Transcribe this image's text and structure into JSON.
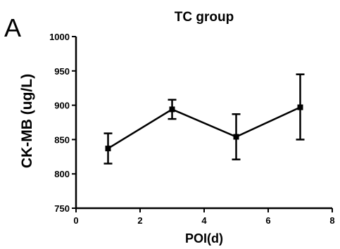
{
  "panel_label": "A",
  "chart_data": {
    "type": "line",
    "title": "TC group",
    "xlabel": "POI(d)",
    "ylabel": "CK-MB (ug/L)",
    "xlim": [
      0,
      8
    ],
    "ylim": [
      750,
      1000
    ],
    "xticks": [
      0,
      2,
      4,
      6,
      8
    ],
    "yticks": [
      750,
      800,
      850,
      900,
      950,
      1000
    ],
    "x_tick_labels": [
      "0",
      "2",
      "4",
      "6",
      "8"
    ],
    "y_tick_labels": [
      "750",
      "800",
      "850",
      "900",
      "950",
      "1000"
    ],
    "grid": false,
    "series": [
      {
        "x": [
          1,
          3,
          5,
          7
        ],
        "y": [
          837,
          894,
          854,
          897
        ],
        "error_low": [
          815,
          880,
          821,
          850
        ],
        "error_high": [
          859,
          908,
          887,
          945
        ]
      }
    ]
  }
}
